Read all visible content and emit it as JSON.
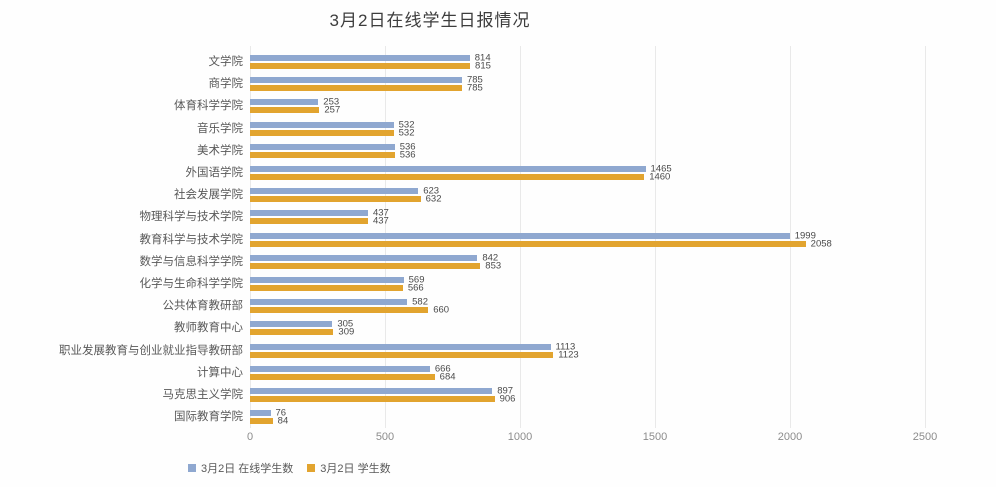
{
  "title": "3月2日在线学生日报情况",
  "colors": {
    "online_series": "#8fa8d0",
    "total_series": "#e2a42f",
    "gridline": "#e9e9e9",
    "title_text": "#3d3d3d",
    "category_text": "#595959",
    "tick_text": "#8c8c8c",
    "value_text": "#4a4a4a"
  },
  "chart_data": {
    "type": "bar",
    "orientation": "horizontal",
    "title": "3月2日在线学生日报情况",
    "categories": [
      "文学院",
      "商学院",
      "体育科学学院",
      "音乐学院",
      "美术学院",
      "外国语学院",
      "社会发展学院",
      "物理科学与技术学院",
      "教育科学与技术学院",
      "数学与信息科学学院",
      "化学与生命科学学院",
      "公共体育教研部",
      "教师教育中心",
      "职业发展教育与创业就业指导教研部",
      "计算中心",
      "马克思主义学院",
      "国际教育学院"
    ],
    "series": [
      {
        "name": "3月2日 在线学生数",
        "color_key": "online_series",
        "values": [
          814,
          785,
          253,
          532,
          536,
          1465,
          623,
          437,
          1999,
          842,
          569,
          582,
          305,
          1113,
          666,
          897,
          76
        ]
      },
      {
        "name": "3月2日 学生数",
        "color_key": "total_series",
        "values": [
          815,
          785,
          257,
          532,
          536,
          1460,
          632,
          437,
          2058,
          853,
          566,
          660,
          309,
          1123,
          684,
          906,
          84
        ]
      }
    ],
    "x_ticks": [
      0,
      500,
      1000,
      1500,
      2000,
      2500
    ],
    "xlim": [
      0,
      2500
    ],
    "grid": true,
    "data_labels": true,
    "legend_position": "bottom-left"
  }
}
